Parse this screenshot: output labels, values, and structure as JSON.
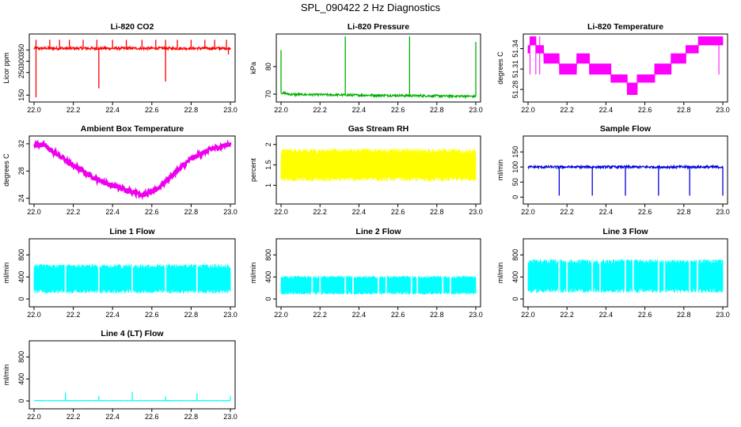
{
  "title": "SPL_090422  2 Hz Diagnostics",
  "chart_data": [
    {
      "type": "line",
      "title": "Li-820 CO2",
      "ylabel": "Licor ppm",
      "color": "#ff0000",
      "x": [
        22.0,
        23.0
      ],
      "ylim": [
        130,
        410
      ],
      "yticks": [
        150,
        250,
        300,
        350
      ],
      "xticks": [
        22.0,
        22.2,
        22.4,
        22.6,
        22.8,
        23.0
      ],
      "series": [
        {
          "name": "baseline",
          "value": 357,
          "noise": 6
        },
        {
          "name": "spikes",
          "points": [
            [
              22.01,
              395
            ],
            [
              22.01,
              140
            ],
            [
              22.08,
              395
            ],
            [
              22.13,
              395
            ],
            [
              22.18,
              395
            ],
            [
              22.25,
              395
            ],
            [
              22.32,
              395
            ],
            [
              22.33,
              180
            ],
            [
              22.4,
              395
            ],
            [
              22.47,
              395
            ],
            [
              22.55,
              395
            ],
            [
              22.62,
              395
            ],
            [
              22.67,
              395
            ],
            [
              22.67,
              210
            ],
            [
              22.73,
              395
            ],
            [
              22.8,
              395
            ],
            [
              22.87,
              395
            ],
            [
              22.92,
              395
            ],
            [
              22.98,
              395
            ],
            [
              22.99,
              330
            ]
          ]
        }
      ]
    },
    {
      "type": "line",
      "title": "Li-820 Pressure",
      "ylabel": "kPa",
      "color": "#00b000",
      "ylim": [
        68,
        91
      ],
      "yticks": [
        70,
        80
      ],
      "xticks": [
        22.0,
        22.2,
        22.4,
        22.6,
        22.8,
        23.0
      ],
      "series": [
        {
          "name": "baseline",
          "points": [
            [
              22.0,
              70.5
            ],
            [
              22.05,
              69.9
            ],
            [
              23.0,
              69.2
            ]
          ],
          "noise": 0.4
        },
        {
          "name": "spikes",
          "points": [
            [
              22.0,
              86
            ],
            [
              22.33,
              91
            ],
            [
              22.66,
              91
            ],
            [
              23.0,
              89
            ]
          ]
        }
      ]
    },
    {
      "type": "line",
      "title": "Li-820 Temperature",
      "ylabel": "degrees C",
      "color": "#ff00ff",
      "ylim": [
        51.265,
        51.358
      ],
      "yticks": [
        51.28,
        51.31,
        51.34
      ],
      "xticks": [
        22.0,
        22.2,
        22.4,
        22.6,
        22.8,
        23.0
      ],
      "levels": [
        51.272,
        51.29,
        51.302,
        51.318,
        51.333,
        51.345,
        51.358
      ]
    },
    {
      "type": "line",
      "title": "Ambient Box Temperature",
      "ylabel": "degrees C",
      "color": "#ee00ee",
      "ylim": [
        23.5,
        32.8
      ],
      "yticks": [
        24,
        28,
        32
      ],
      "xticks": [
        22.0,
        22.2,
        22.4,
        22.6,
        22.8,
        23.0
      ],
      "series": [
        {
          "name": "temperature",
          "points": [
            [
              22.0,
              31.8
            ],
            [
              22.05,
              31.9
            ],
            [
              22.1,
              30.8
            ],
            [
              22.2,
              28.8
            ],
            [
              22.3,
              27.1
            ],
            [
              22.4,
              25.8
            ],
            [
              22.5,
              25.0
            ],
            [
              22.56,
              24.5
            ],
            [
              22.62,
              25.2
            ],
            [
              22.7,
              27.3
            ],
            [
              22.8,
              29.8
            ],
            [
              22.9,
              31.2
            ],
            [
              23.0,
              32.0
            ]
          ],
          "noise": 0.35
        }
      ]
    },
    {
      "type": "line",
      "title": "Gas Stream RH",
      "ylabel": "percent",
      "color": "#ffff00",
      "ylim": [
        0.6,
        2.15
      ],
      "yticks": [
        1.0,
        1.5,
        2.0
      ],
      "xticks": [
        22.0,
        22.2,
        22.4,
        22.6,
        22.8,
        23.0
      ],
      "band": [
        1.1,
        1.9
      ]
    },
    {
      "type": "line",
      "title": "Sample Flow",
      "ylabel": "ml/min",
      "color": "#0000dd",
      "ylim": [
        -15,
        195
      ],
      "yticks": [
        0,
        50,
        100,
        150
      ],
      "xticks": [
        22.0,
        22.2,
        22.4,
        22.6,
        22.8,
        23.0
      ],
      "series": [
        {
          "name": "baseline",
          "value": 100,
          "noise": 4
        },
        {
          "name": "dips",
          "points": [
            [
              22.16,
              5
            ],
            [
              22.33,
              5
            ],
            [
              22.5,
              5
            ],
            [
              22.67,
              5
            ],
            [
              22.83,
              5
            ],
            [
              23.0,
              5
            ]
          ]
        }
      ]
    },
    {
      "type": "line",
      "title": "Line 1 Flow",
      "ylabel": "ml/min",
      "color": "#00ffff",
      "ylim": [
        -100,
        1050
      ],
      "yticks": [
        0,
        400,
        800
      ],
      "xticks": [
        22.0,
        22.2,
        22.4,
        22.6,
        22.8,
        23.0
      ],
      "band": [
        100,
        630
      ],
      "gaps": [
        22.16,
        22.33,
        22.5,
        22.67,
        22.83
      ]
    },
    {
      "type": "line",
      "title": "Line 2 Flow",
      "ylabel": "ml/min",
      "color": "#00ffff",
      "ylim": [
        -100,
        1050
      ],
      "yticks": [
        0,
        400,
        800
      ],
      "xticks": [
        22.0,
        22.2,
        22.4,
        22.6,
        22.8,
        23.0
      ],
      "band": [
        80,
        420
      ],
      "gaps": [
        22.16,
        22.2,
        22.33,
        22.37,
        22.5,
        22.54,
        22.67,
        22.7,
        22.83,
        22.87
      ]
    },
    {
      "type": "line",
      "title": "Line 3 Flow",
      "ylabel": "ml/min",
      "color": "#00ffff",
      "ylim": [
        -100,
        1050
      ],
      "yticks": [
        0,
        400,
        800
      ],
      "xticks": [
        22.0,
        22.2,
        22.4,
        22.6,
        22.8,
        23.0
      ],
      "band": [
        110,
        720
      ],
      "gaps": [
        22.16,
        22.2,
        22.33,
        22.37,
        22.5,
        22.54,
        22.67,
        22.7,
        22.83,
        22.87
      ]
    },
    {
      "type": "line",
      "title": "Line 4 (LT) Flow",
      "ylabel": "ml/min",
      "color": "#00ffff",
      "ylim": [
        -100,
        1050
      ],
      "yticks": [
        0,
        400,
        800
      ],
      "xticks": [
        22.0,
        22.2,
        22.4,
        22.6,
        22.8,
        23.0
      ],
      "series": [
        {
          "name": "baseline",
          "value": 5,
          "noise": 3
        },
        {
          "name": "spikes",
          "points": [
            [
              22.16,
              150
            ],
            [
              22.33,
              90
            ],
            [
              22.5,
              160
            ],
            [
              22.67,
              80
            ],
            [
              22.83,
              140
            ],
            [
              23.0,
              90
            ]
          ]
        }
      ]
    }
  ]
}
